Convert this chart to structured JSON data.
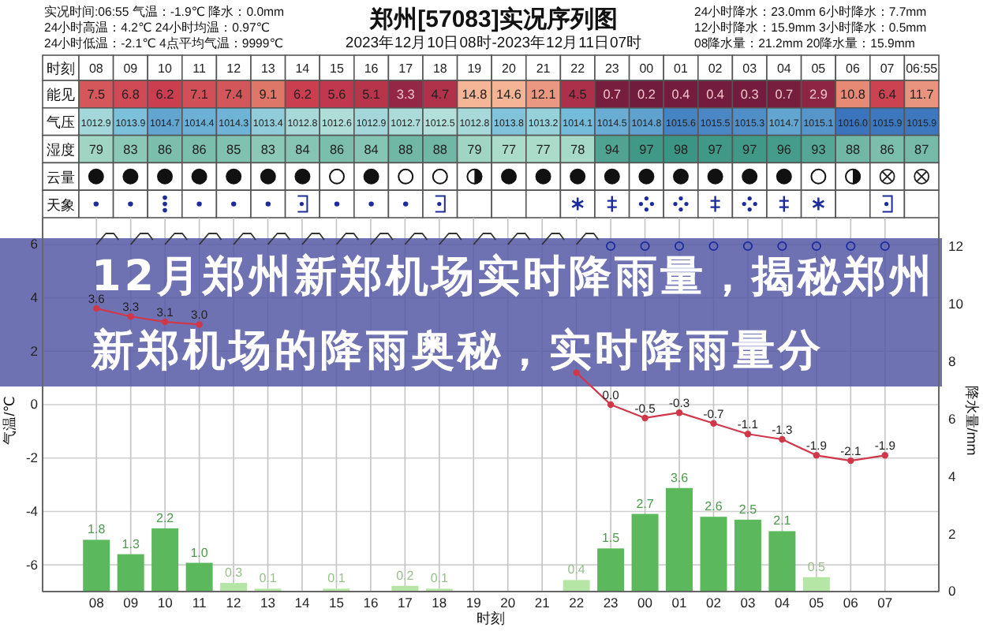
{
  "chart_data": [
    {
      "type": "heatmap",
      "title": "郑州[57083]实况序列图",
      "subtitle": "2023年12月10日08时-2023年12月11日07时",
      "annotations": [
        "实况时间:06:55 气温：-1.9℃ 降水：0.0mm",
        "24小时高温：4.2℃ 24小时均温：0.97℃",
        "24小时低温：-2.1℃ 4点平均气温：9999℃",
        "24小时降水：23.0mm 6小时降水：7.7mm",
        "12小时降水：15.9mm 3小时降水：0.5mm",
        "08降水量：21.2mm 20降水量：15.9mm"
      ],
      "xlabel": "时刻",
      "categories": [
        "08",
        "09",
        "10",
        "11",
        "12",
        "13",
        "14",
        "15",
        "16",
        "17",
        "18",
        "19",
        "20",
        "21",
        "22",
        "23",
        "00",
        "01",
        "02",
        "03",
        "04",
        "05",
        "06",
        "07",
        "06:55"
      ],
      "y_categories": [
        "能见",
        "气压",
        "湿度",
        "云量",
        "天象"
      ],
      "cells": [
        [
          7.5,
          6.8,
          6.2,
          7.1,
          7.4,
          9.1,
          6.2,
          5.6,
          5.1,
          3.3,
          4.7,
          14.8,
          14.6,
          12.1,
          4.5,
          0.7,
          0.2,
          0.4,
          0.4,
          0.3,
          0.7,
          2.9,
          10.8,
          6.4,
          11.7
        ],
        [
          1012.9,
          1013.9,
          1014.7,
          1014.4,
          1014.3,
          1013.4,
          1012.8,
          1012.6,
          1012.9,
          1012.7,
          1012.5,
          1012.8,
          1013.8,
          1013.2,
          1014.1,
          1014.5,
          1014.8,
          1015.6,
          1015.5,
          1015.3,
          1014.7,
          1015.1,
          1016.0,
          1015.9,
          1015.9
        ],
        [
          79,
          83,
          86,
          86,
          85,
          83,
          84,
          86,
          84,
          88,
          88,
          79,
          77,
          77,
          78,
          94,
          97,
          98,
          97,
          97,
          96,
          93,
          88,
          86,
          87
        ],
        [
          null,
          null,
          null,
          null,
          null,
          null,
          null,
          null,
          null,
          null,
          null,
          null,
          null,
          null,
          null,
          null,
          null,
          null,
          null,
          null,
          null,
          null,
          null,
          null,
          null
        ],
        [
          null,
          null,
          null,
          null,
          null,
          null,
          null,
          null,
          null,
          null,
          null,
          null,
          null,
          null,
          null,
          null,
          null,
          null,
          null,
          null,
          null,
          null,
          null,
          null,
          null
        ]
      ],
      "cell_labels": [
        [
          "7.5",
          "6.8",
          "6.2",
          "7.1",
          "7.4",
          "9.1",
          "6.2",
          "5.6",
          "5.1",
          "3.3",
          "4.7",
          "14.8",
          "14.6",
          "12.1",
          "4.5",
          "0.7",
          "0.2",
          "0.4",
          "0.4",
          "0.3",
          "0.7",
          "2.9",
          "10.8",
          "6.4",
          "11.7"
        ],
        [
          "1012.9",
          "1013.9",
          "1014.7",
          "1014.4",
          "1014.3",
          "1013.4",
          "1012.8",
          "1012.6",
          "1012.9",
          "1012.7",
          "1012.5",
          "1012.8",
          "1013.8",
          "1013.2",
          "1014.1",
          "1014.5",
          "1014.8",
          "1015.6",
          "1015.5",
          "1015.3",
          "1014.7",
          "1015.1",
          "1016.0",
          "1015.9",
          "1015.9"
        ],
        [
          "79",
          "83",
          "86",
          "86",
          "85",
          "83",
          "84",
          "86",
          "84",
          "88",
          "88",
          "79",
          "77",
          "77",
          "78",
          "94",
          "97",
          "98",
          "97",
          "97",
          "96",
          "93",
          "88",
          "86",
          "87"
        ],
        [
          null,
          null,
          null,
          null,
          null,
          null,
          null,
          null,
          null,
          null,
          null,
          null,
          null,
          null,
          null,
          null,
          null,
          null,
          null,
          null,
          null,
          null,
          null,
          null,
          null
        ],
        [
          null,
          null,
          null,
          null,
          null,
          null,
          null,
          null,
          null,
          null,
          null,
          null,
          null,
          null,
          null,
          null,
          null,
          null,
          null,
          null,
          null,
          null,
          null,
          null,
          null
        ]
      ]
    },
    {
      "type": "bar",
      "annotations": [
        "12月郑州新郑机场实时降雨量，揭秘郑州新郑机场的降雨奥秘，实时降雨量分"
      ],
      "xlabel": "时刻",
      "ylabel": "气温/℃",
      "y2label": "降水量/mm",
      "categories": [
        "08",
        "09",
        "10",
        "11",
        "12",
        "13",
        "14",
        "15",
        "16",
        "17",
        "18",
        "19",
        "20",
        "21",
        "22",
        "23",
        "00",
        "01",
        "02",
        "03",
        "04",
        "05",
        "06",
        "07"
      ],
      "series": [
        {
          "type": "bar",
          "axis": "y2",
          "colors": [
            "#5cb85c",
            "#5cb85c",
            "#5cb85c",
            "#5cb85c",
            "#b6e6a6",
            "#b6e6a6",
            null,
            "#b6e6a6",
            null,
            "#b6e6a6",
            "#b6e6a6",
            null,
            null,
            null,
            "#b6e6a6",
            "#5cb85c",
            "#5cb85c",
            "#5cb85c",
            "#5cb85c",
            "#5cb85c",
            "#5cb85c",
            "#b6e6a6",
            null,
            null
          ],
          "values": [
            1.8,
            1.3,
            2.2,
            1.0,
            0.3,
            0.1,
            null,
            0.1,
            null,
            0.2,
            0.1,
            null,
            null,
            null,
            0.4,
            1.5,
            2.7,
            3.6,
            2.6,
            2.5,
            2.1,
            0.5,
            null,
            null
          ],
          "value_labels": [
            "1.8",
            "1.3",
            "2.2",
            "1.0",
            "0.3",
            "0.1",
            null,
            "0.1",
            null,
            "0.2",
            "0.1",
            null,
            null,
            null,
            "0.4",
            "1.5",
            "2.7",
            "3.6",
            "2.6",
            "2.5",
            "2.1",
            "0.5",
            null,
            null
          ]
        },
        {
          "type": "line",
          "color": "#d0384a",
          "values": [
            3.6,
            3.3,
            3.1,
            3.0,
            null,
            null,
            null,
            null,
            null,
            null,
            null,
            null,
            null,
            null,
            1.2,
            0.0,
            -0.5,
            -0.3,
            -0.7,
            -1.1,
            -1.3,
            -1.9,
            -2.1,
            -1.9
          ],
          "value_labels": [
            "3.6",
            "3.3",
            "3.1",
            "3.0",
            null,
            null,
            null,
            null,
            null,
            null,
            null,
            null,
            null,
            null,
            null,
            "0.0",
            "-0.5",
            "-0.3",
            "-0.7",
            "-1.1",
            "-1.3",
            "-1.9",
            "-2.1",
            "-1.9"
          ]
        }
      ],
      "ylim": [
        -7,
        7
      ],
      "yticks": [
        -6,
        -4,
        -2,
        0,
        2,
        4,
        6
      ],
      "y2lim": [
        0,
        13
      ],
      "y2ticks": [
        0,
        2,
        4,
        6,
        8,
        10,
        12
      ],
      "grid": true,
      "marker": "circle"
    }
  ]
}
